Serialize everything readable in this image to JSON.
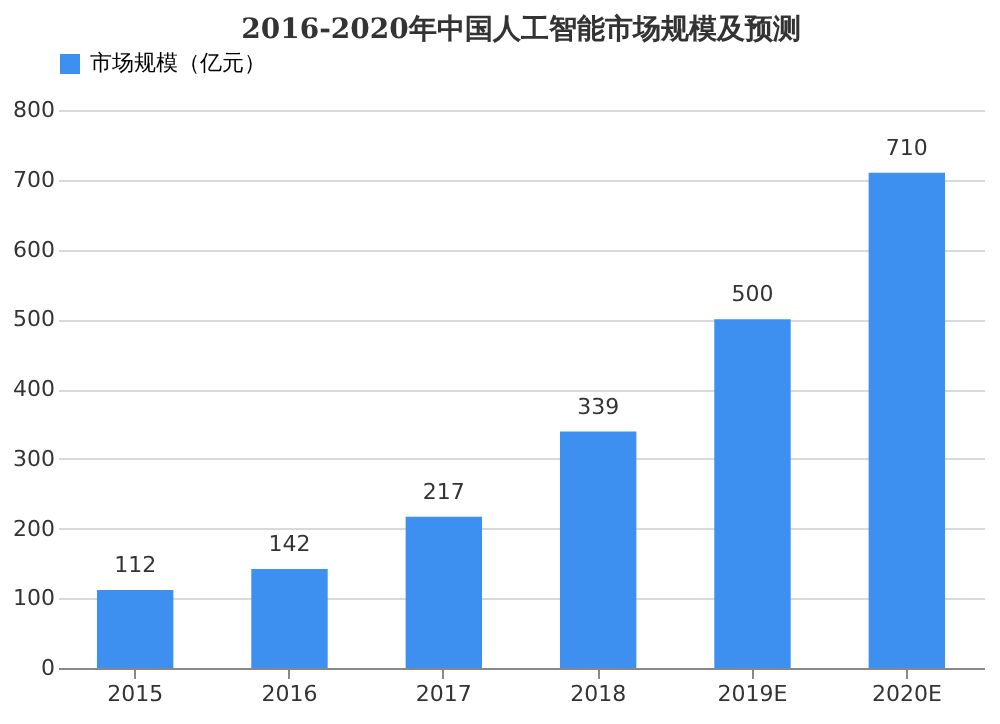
{
  "chart_data": {
    "type": "bar",
    "title": "2016-2020年中国人工智能市场规模及预测",
    "categories": [
      "2015",
      "2016",
      "2017",
      "2018",
      "2019E",
      "2020E"
    ],
    "series": [
      {
        "name": "市场规模（亿元）",
        "color": "#3d8ff0",
        "values": [
          112,
          142,
          217,
          339,
          500,
          710
        ]
      }
    ],
    "ylim": [
      0,
      800
    ],
    "yticks": [
      0,
      100,
      200,
      300,
      400,
      500,
      600,
      700,
      800
    ],
    "grid": "y",
    "legend": "top",
    "data_labels": true
  }
}
